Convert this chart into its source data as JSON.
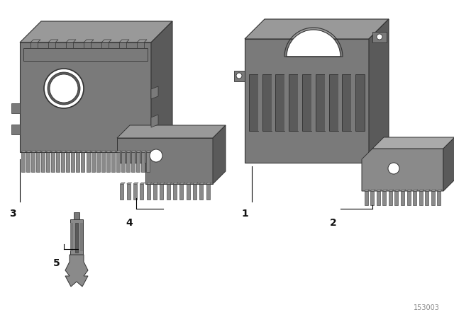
{
  "background_color": "#ffffff",
  "part_color_main": "#7a7a7a",
  "part_color_top": "#999999",
  "part_color_side": "#5a5a5a",
  "part_color_light": "#8a8a8a",
  "part_color_lighter": "#aaaaaa",
  "reference": "153003",
  "figsize": [
    6.4,
    4.48
  ],
  "dpi": 100
}
